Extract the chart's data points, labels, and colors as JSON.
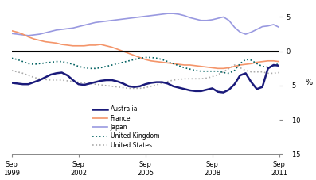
{
  "title": "",
  "ylabel": "%",
  "ylim": [
    -15,
    7
  ],
  "yticks": [
    -15,
    -10,
    -5,
    0,
    5
  ],
  "x_tick_labels": [
    "Sep\n1999",
    "Sep\n2002",
    "Sep\n2005",
    "Sep\n2008",
    "Sep\n2011"
  ],
  "x_tick_positions": [
    0,
    12,
    24,
    36,
    48
  ],
  "n_points": 49,
  "australia": [
    -4.6,
    -4.7,
    -4.8,
    -4.8,
    -4.5,
    -4.2,
    -3.8,
    -3.4,
    -3.2,
    -3.1,
    -3.5,
    -4.2,
    -4.8,
    -4.9,
    -4.7,
    -4.5,
    -4.3,
    -4.2,
    -4.2,
    -4.4,
    -4.7,
    -5.1,
    -5.2,
    -5.1,
    -4.8,
    -4.6,
    -4.5,
    -4.5,
    -4.7,
    -5.1,
    -5.3,
    -5.5,
    -5.7,
    -5.8,
    -5.8,
    -5.6,
    -5.4,
    -5.9,
    -6.0,
    -5.6,
    -4.8,
    -3.5,
    -3.2,
    -4.5,
    -5.5,
    -5.2,
    -2.5,
    -2.0,
    -2.1
  ],
  "france": [
    3.0,
    2.8,
    2.5,
    2.1,
    1.8,
    1.6,
    1.4,
    1.3,
    1.2,
    1.0,
    0.9,
    0.8,
    0.8,
    0.8,
    0.9,
    0.9,
    1.0,
    0.8,
    0.6,
    0.3,
    0.0,
    -0.3,
    -0.6,
    -0.9,
    -1.2,
    -1.4,
    -1.5,
    -1.6,
    -1.7,
    -1.8,
    -1.9,
    -2.0,
    -2.0,
    -2.1,
    -2.2,
    -2.3,
    -2.4,
    -2.5,
    -2.5,
    -2.4,
    -2.2,
    -2.0,
    -1.9,
    -1.8,
    -1.6,
    -1.5,
    -1.4,
    -1.4,
    -1.5
  ],
  "japan": [
    2.6,
    2.5,
    2.4,
    2.3,
    2.4,
    2.5,
    2.7,
    2.9,
    3.1,
    3.2,
    3.3,
    3.4,
    3.6,
    3.8,
    4.0,
    4.2,
    4.3,
    4.4,
    4.5,
    4.6,
    4.7,
    4.8,
    4.9,
    5.0,
    5.1,
    5.2,
    5.3,
    5.4,
    5.5,
    5.5,
    5.4,
    5.2,
    4.9,
    4.7,
    4.5,
    4.5,
    4.6,
    4.8,
    5.0,
    4.5,
    3.5,
    2.8,
    2.5,
    2.8,
    3.2,
    3.6,
    3.7,
    3.9,
    3.5
  ],
  "uk": [
    -1.0,
    -1.2,
    -1.5,
    -1.8,
    -1.9,
    -1.8,
    -1.7,
    -1.6,
    -1.5,
    -1.5,
    -1.7,
    -1.9,
    -2.2,
    -2.4,
    -2.5,
    -2.5,
    -2.4,
    -2.2,
    -2.0,
    -1.8,
    -1.6,
    -1.4,
    -1.2,
    -1.0,
    -0.9,
    -0.9,
    -1.0,
    -1.2,
    -1.5,
    -1.8,
    -2.1,
    -2.4,
    -2.6,
    -2.8,
    -2.9,
    -2.9,
    -2.9,
    -2.9,
    -3.1,
    -3.2,
    -2.8,
    -1.8,
    -1.2,
    -1.3,
    -1.8,
    -2.2,
    -2.3,
    -2.1,
    -1.8
  ],
  "us": [
    -2.8,
    -3.0,
    -3.2,
    -3.5,
    -3.8,
    -4.0,
    -4.1,
    -4.2,
    -4.2,
    -4.2,
    -4.3,
    -4.4,
    -4.5,
    -4.6,
    -4.7,
    -4.8,
    -4.9,
    -5.0,
    -5.1,
    -5.2,
    -5.3,
    -5.4,
    -5.4,
    -5.4,
    -5.3,
    -5.1,
    -4.9,
    -4.6,
    -4.4,
    -4.2,
    -4.1,
    -4.0,
    -4.0,
    -4.0,
    -4.0,
    -3.9,
    -3.7,
    -3.4,
    -3.0,
    -2.5,
    -2.0,
    -2.4,
    -2.8,
    -3.0,
    -3.0,
    -3.0,
    -3.2,
    -3.2,
    -3.1
  ],
  "australia_color": "#1a1a7a",
  "france_color": "#f4956a",
  "japan_color": "#9999e0",
  "uk_color": "#006060",
  "us_color": "#aaaaaa",
  "zero_line_color": "#000000",
  "bg_color": "#ffffff"
}
